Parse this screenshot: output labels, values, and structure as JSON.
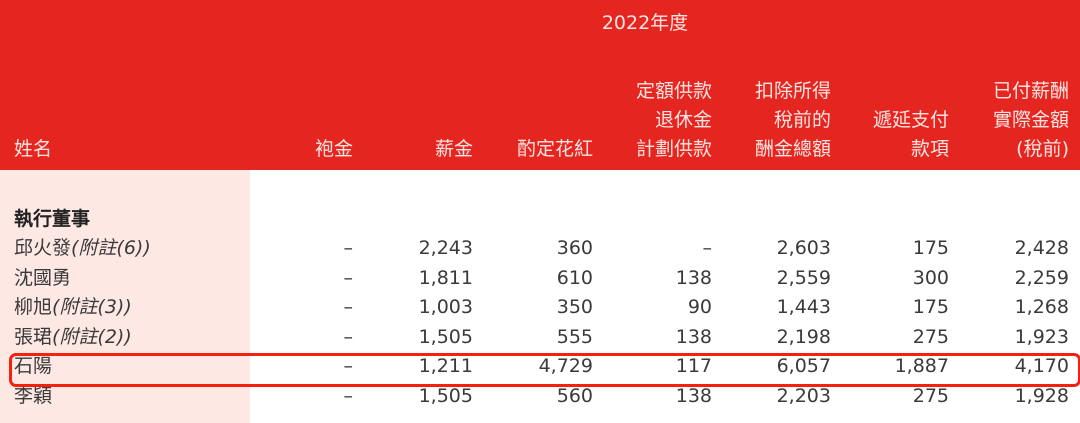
{
  "header": {
    "year": "2022年度",
    "columns": [
      "姓名",
      "袍金",
      "薪金",
      "酌定花紅",
      "定額供款\n退休金\n計劃供款",
      "扣除所得\n稅前的\n酬金總額",
      "遞延支付\n款項",
      "已付薪酬\n實際金額\n(稅前)"
    ]
  },
  "section": "執行董事",
  "rows": [
    {
      "name": "邱火發",
      "note": "(附註(6))",
      "values": [
        "–",
        "2,243",
        "360",
        "–",
        "2,603",
        "175",
        "2,428"
      ]
    },
    {
      "name": "沈國勇",
      "note": "",
      "values": [
        "–",
        "1,811",
        "610",
        "138",
        "2,559",
        "300",
        "2,259"
      ]
    },
    {
      "name": "柳旭",
      "note": "(附註(3))",
      "values": [
        "–",
        "1,003",
        "350",
        "90",
        "1,443",
        "175",
        "1,268"
      ]
    },
    {
      "name": "張珺",
      "note": "(附註(2))",
      "values": [
        "–",
        "1,505",
        "555",
        "138",
        "2,198",
        "275",
        "1,923"
      ]
    },
    {
      "name": "石陽",
      "note": "",
      "values": [
        "–",
        "1,211",
        "4,729",
        "117",
        "6,057",
        "1,887",
        "4,170"
      ]
    },
    {
      "name": "李穎",
      "note": "",
      "values": [
        "–",
        "1,505",
        "560",
        "138",
        "2,203",
        "275",
        "1,928"
      ]
    }
  ],
  "highlighted_row": "石陽",
  "colors": {
    "header": "#e52620",
    "name_column": "#fde8e4",
    "highlight_border": "#f5210f"
  }
}
